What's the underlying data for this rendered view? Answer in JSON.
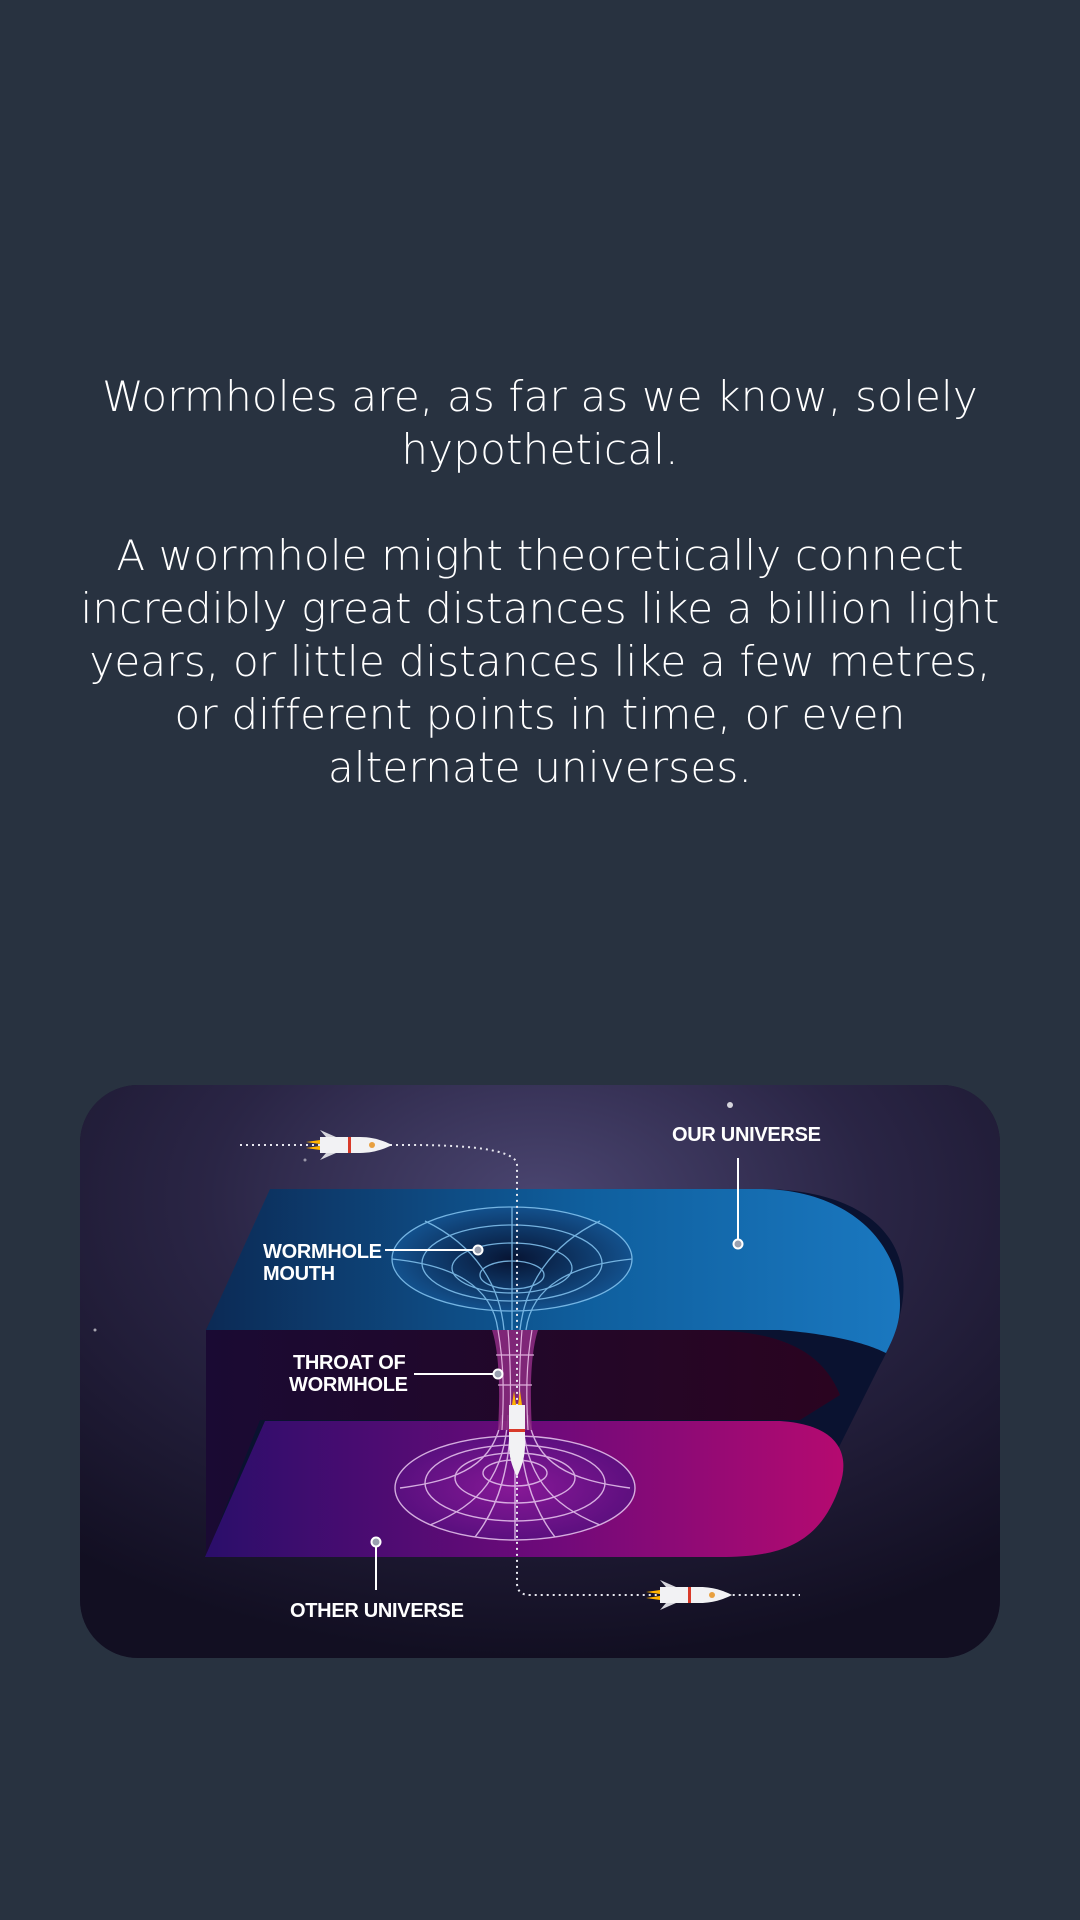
{
  "content": {
    "paragraph_1": "Wormholes are, as far as we know, solely hypothetical.",
    "paragraph_2": "A wormhole might theoretically connect incredibly great distances like a billion light years, or little distances like a few metres, or different points in time, or even alternate universes."
  },
  "illustration": {
    "labels": {
      "our_universe": "OUR UNIVERSE",
      "wormhole_mouth_line1": "WORMHOLE",
      "wormhole_mouth_line2": "MOUTH",
      "throat_line1": "THROAT OF",
      "throat_line2": "WORMHOLE",
      "other_universe": "OTHER UNIVERSE"
    },
    "colors": {
      "page_background": "#283240",
      "our_universe_sheet": "#1a6fb0",
      "other_universe_sheet": "#9a0a6e",
      "space_background": "#1b1930"
    }
  }
}
